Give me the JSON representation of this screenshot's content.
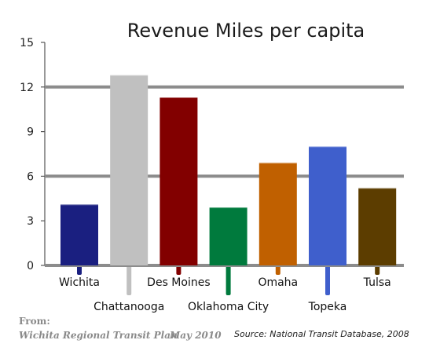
{
  "chart_data": {
    "type": "bar",
    "title": "Revenue Miles per capita",
    "categories": [
      "Wichita",
      "Chattanooga",
      "Des Moines",
      "Oklahoma City",
      "Omaha",
      "Topeka",
      "Tulsa"
    ],
    "values": [
      4.1,
      12.8,
      11.3,
      3.9,
      6.9,
      8.0,
      5.2
    ],
    "colors": [
      "#1a1f80",
      "#c0c0c0",
      "#820000",
      "#007a3d",
      "#c06000",
      "#3f5fcc",
      "#5c3d00"
    ],
    "label_rows": [
      "top",
      "bottom",
      "top",
      "bottom",
      "top",
      "bottom",
      "top"
    ],
    "yticks": [
      0,
      3,
      6,
      9,
      12,
      15
    ],
    "ylim": [
      0,
      15
    ],
    "xlabel": "",
    "ylabel": "",
    "gridlines": [
      6,
      12
    ]
  },
  "footer": {
    "from_label": "From:",
    "from_source": "Wichita Regional Transit Plan",
    "from_date": "May 2010",
    "source": "Source: National Transit Database, 2008"
  }
}
